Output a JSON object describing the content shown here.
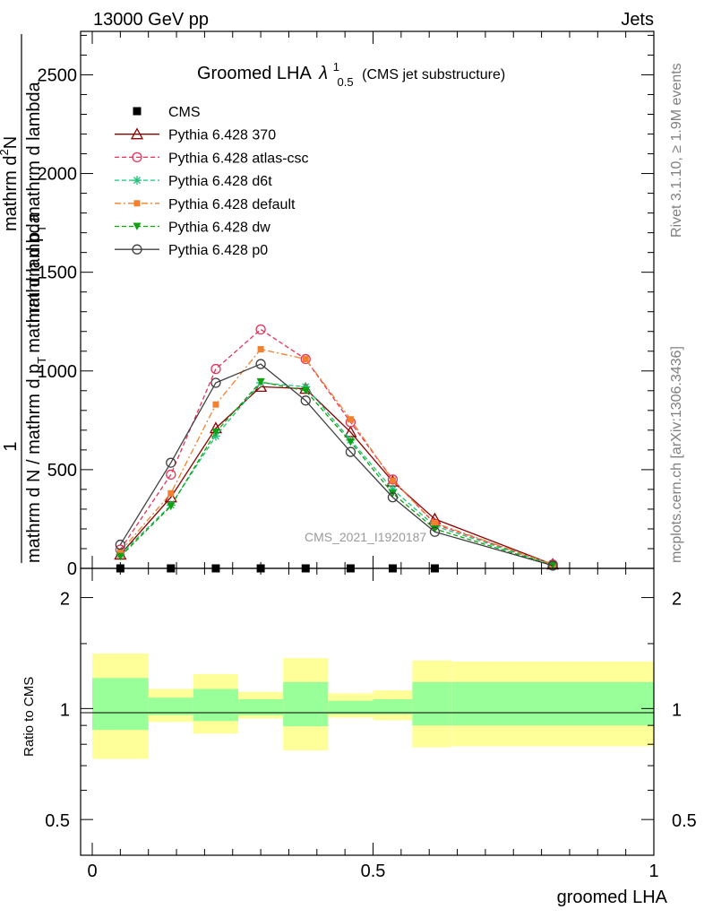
{
  "header": {
    "left": "13000 GeV pp",
    "right": "Jets"
  },
  "side": {
    "rivet": "Rivet 3.1.10, ≥ 1.9M events",
    "mcplots": "mcplots.cern.ch [arXiv:1306.3436]"
  },
  "chart_data": [
    {
      "type": "line",
      "title_main": "Groomed LHA",
      "title_lambda": "λ",
      "title_sup": "1",
      "title_sub": "0.5",
      "title_paren": "(CMS jet substructure)",
      "ylabel_top": "1",
      "ylabel_bottom": "mathrm d N / mathrm d p_{T} mathrm d lambda",
      "ylabel_line1": "mathrm d",
      "ylabel_line1_sup": "2",
      "ylabel_line1_tail": "N",
      "ylabel_line2": "mathrm d p",
      "ylabel_line2_sub": "T",
      "ylabel_line2_tail": "mathrm d lambda",
      "ylabel_line3": "mathrm d N / mathrm d p",
      "ylabel_line3_sub": "T",
      "ylabel_line3_tail": "mathrm d lambda",
      "watermark": "CMS_2021_I1920187",
      "xlim": [
        0,
        1
      ],
      "ylim": [
        0,
        2720
      ],
      "yticks": [
        0,
        500,
        1000,
        1500,
        2000,
        2500
      ],
      "ytick_labels": [
        "0",
        "500",
        "1000",
        "1500",
        "2000",
        "2500"
      ],
      "legend_position": "top-left",
      "x": [
        0.05,
        0.14,
        0.22,
        0.3,
        0.38,
        0.46,
        0.535,
        0.61,
        0.82
      ],
      "series": [
        {
          "name": "CMS",
          "color": "#000000",
          "marker": "square",
          "dash": "none",
          "values": [
            0,
            0,
            0,
            0,
            0,
            0,
            0,
            0,
            null
          ]
        },
        {
          "name": "Pythia 6.428 370",
          "color": "#8b0000",
          "marker": "triangle-open",
          "dash": "solid",
          "values": [
            70,
            360,
            710,
            920,
            910,
            690,
            440,
            250,
            20
          ]
        },
        {
          "name": "Pythia 6.428 atlas-csc",
          "color": "#e8335a",
          "marker": "circle-open",
          "dash": "dashed",
          "values": [
            95,
            475,
            1010,
            1210,
            1060,
            740,
            450,
            225,
            20
          ]
        },
        {
          "name": "Pythia 6.428 d6t",
          "color": "#1fbf7a",
          "marker": "star",
          "dash": "dashed",
          "values": [
            70,
            320,
            670,
            940,
            920,
            650,
            400,
            215,
            18
          ]
        },
        {
          "name": "Pythia 6.428 default",
          "color": "#f2802e",
          "marker": "square-filled",
          "dash": "dashdot",
          "values": [
            85,
            380,
            830,
            1110,
            1060,
            755,
            445,
            230,
            20
          ]
        },
        {
          "name": "Pythia 6.428 dw",
          "color": "#10a010",
          "marker": "triangle-down-filled",
          "dash": "dashed",
          "values": [
            60,
            315,
            690,
            945,
            900,
            640,
            380,
            200,
            16
          ]
        },
        {
          "name": "Pythia 6.428 p0",
          "color": "#404040",
          "marker": "circle-open",
          "dash": "solid",
          "values": [
            120,
            535,
            940,
            1035,
            850,
            590,
            360,
            185,
            14
          ]
        }
      ]
    },
    {
      "type": "area",
      "ylabel": "Ratio to CMS",
      "xlabel": "groomed LHA",
      "xlim": [
        0,
        1
      ],
      "xticks": [
        0,
        0.5,
        1
      ],
      "xtick_labels": [
        "0",
        "0.5",
        "1"
      ],
      "yscale": "log",
      "ylim": [
        0.4,
        2.4
      ],
      "yticks": [
        0.5,
        1,
        2
      ],
      "ytick_labels": [
        "0.5",
        "1",
        "2"
      ],
      "reference_line": 1,
      "bands": [
        {
          "x0": 0.0,
          "x1": 0.1,
          "inner": [
            0.875,
            1.21
          ],
          "outer": [
            0.73,
            1.41
          ]
        },
        {
          "x0": 0.1,
          "x1": 0.18,
          "inner": [
            0.96,
            1.07
          ],
          "outer": [
            0.92,
            1.13
          ]
        },
        {
          "x0": 0.18,
          "x1": 0.26,
          "inner": [
            0.925,
            1.13
          ],
          "outer": [
            0.855,
            1.24
          ]
        },
        {
          "x0": 0.26,
          "x1": 0.34,
          "inner": [
            0.96,
            1.06
          ],
          "outer": [
            0.94,
            1.11
          ]
        },
        {
          "x0": 0.34,
          "x1": 0.42,
          "inner": [
            0.895,
            1.18
          ],
          "outer": [
            0.77,
            1.37
          ]
        },
        {
          "x0": 0.42,
          "x1": 0.5,
          "inner": [
            0.965,
            1.05
          ],
          "outer": [
            0.945,
            1.1
          ]
        },
        {
          "x0": 0.5,
          "x1": 0.57,
          "inner": [
            0.965,
            1.06
          ],
          "outer": [
            0.93,
            1.12
          ]
        },
        {
          "x0": 0.57,
          "x1": 0.64,
          "inner": [
            0.9,
            1.18
          ],
          "outer": [
            0.785,
            1.35
          ]
        },
        {
          "x0": 0.64,
          "x1": 1.0,
          "inner": [
            0.9,
            1.18
          ],
          "outer": [
            0.79,
            1.34
          ]
        }
      ]
    }
  ],
  "colors": {
    "inner_band": "#99ff99",
    "outer_band": "#ffff99",
    "side_text": "#808080",
    "watermark": "#9a9a9a"
  }
}
